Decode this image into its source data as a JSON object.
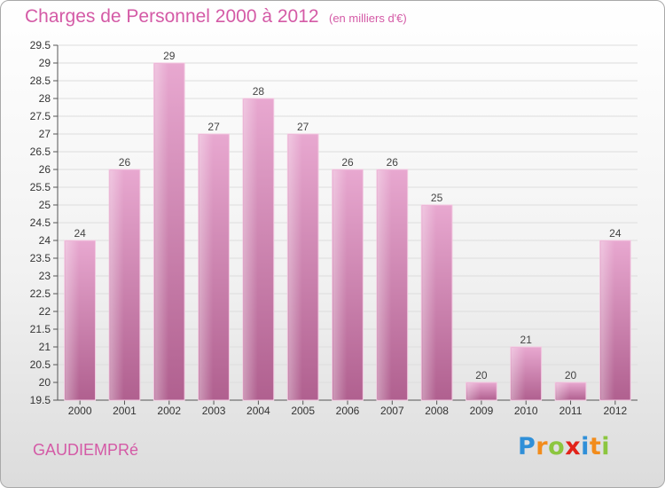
{
  "header": {
    "title": "Charges de Personnel 2000 à 2012",
    "unit": "(en milliers d'€)"
  },
  "footer": {
    "commune": "GAUDIEMPRé",
    "logo_letters": [
      {
        "ch": "P",
        "color": "#2f8fd8"
      },
      {
        "ch": "r",
        "color": "#f28c1c"
      },
      {
        "ch": "o",
        "color": "#8cc63f"
      },
      {
        "ch": "x",
        "color": "#e2231a"
      },
      {
        "ch": "i",
        "color": "#2f8fd8"
      },
      {
        "ch": "t",
        "color": "#f28c1c"
      },
      {
        "ch": "i",
        "color": "#8cc63f"
      }
    ]
  },
  "chart_data": {
    "type": "bar",
    "categories": [
      "2000",
      "2001",
      "2002",
      "2003",
      "2004",
      "2005",
      "2006",
      "2007",
      "2008",
      "2009",
      "2010",
      "2011",
      "2012"
    ],
    "values": [
      24,
      26,
      29,
      27,
      28,
      27,
      26,
      26,
      25,
      20,
      21,
      20,
      24
    ],
    "ylim": [
      19.5,
      29.5
    ],
    "yticks": [
      "19.5",
      "20",
      "20.5",
      "21",
      "21.5",
      "22",
      "22.5",
      "23",
      "23.5",
      "24",
      "24.5",
      "25",
      "25.5",
      "26",
      "26.5",
      "27",
      "27.5",
      "28",
      "28.5",
      "29",
      "29.5"
    ],
    "xlabel": "",
    "ylabel": "",
    "grid": true,
    "bar_color": "#c86fa6"
  }
}
